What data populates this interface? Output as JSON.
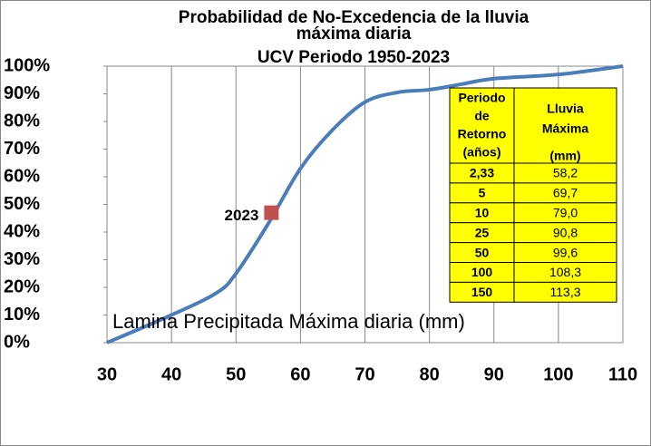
{
  "chart_data": {
    "type": "line",
    "title": "Probabilidad de No-Excedencia de la lluvia máxima diaria",
    "subtitle": "UCV Periodo 1950-2023",
    "x_label": "Lamina Precipitada Máxima diaria (mm)",
    "x": [
      30,
      40,
      47,
      50,
      55,
      60,
      65,
      70,
      75,
      80,
      85,
      90,
      100,
      110
    ],
    "values": [
      0,
      10,
      18,
      25,
      43,
      63,
      77,
      87,
      90.5,
      91.5,
      93.5,
      95.5,
      97,
      100
    ],
    "color": "#4a7ebb",
    "points": [
      {
        "label": "2023",
        "x": 55.5,
        "y": 47,
        "color": "#c0504d"
      }
    ],
    "xlim": [
      30,
      110
    ],
    "xticks": [
      30,
      40,
      50,
      60,
      70,
      80,
      90,
      100,
      110
    ],
    "ylim": [
      0,
      100
    ],
    "yticks": [
      {
        "value": 0,
        "label": "0%"
      },
      {
        "value": 10,
        "label": "10%"
      },
      {
        "value": 20,
        "label": "20%"
      },
      {
        "value": 30,
        "label": "30%"
      },
      {
        "value": 40,
        "label": "40%"
      },
      {
        "value": 50,
        "label": "50%"
      },
      {
        "value": 60,
        "label": "60%"
      },
      {
        "value": 70,
        "label": "70%"
      },
      {
        "value": 80,
        "label": "80%"
      },
      {
        "value": 90,
        "label": "90%"
      },
      {
        "value": 100,
        "label": "100%"
      }
    ],
    "grid": "x"
  },
  "table": {
    "header": [
      [
        "Periodo",
        "de",
        "Retorno",
        "(años)"
      ],
      [
        "Lluvia",
        "Máxima",
        "(mm)"
      ]
    ],
    "rows": [
      [
        "2,33",
        "58,2"
      ],
      [
        "5",
        "69,7"
      ],
      [
        "10",
        "79,0"
      ],
      [
        "25",
        "90,8"
      ],
      [
        "50",
        "99,6"
      ],
      [
        "100",
        "108,3"
      ],
      [
        "150",
        "113,3"
      ]
    ]
  }
}
